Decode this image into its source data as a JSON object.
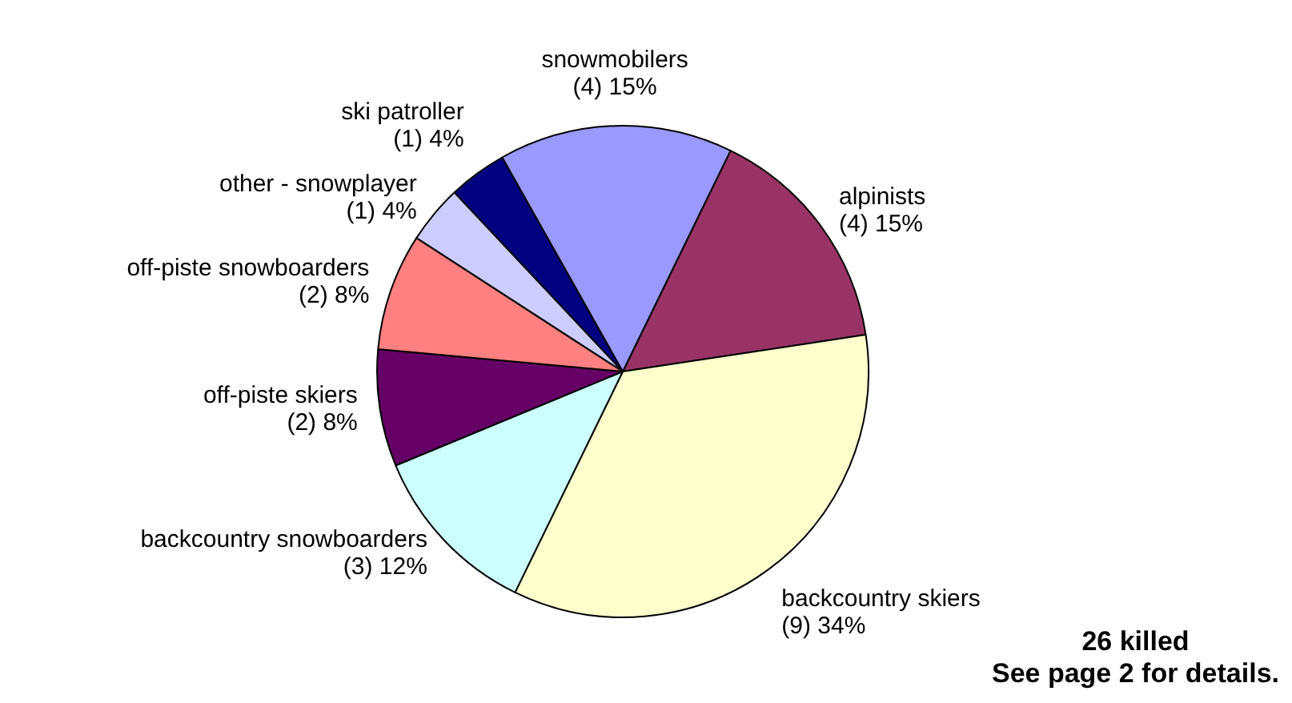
{
  "chart_data": {
    "type": "pie",
    "categories": [
      "alpinists",
      "backcountry skiers",
      "backcountry snowboarders",
      "off-piste skiers",
      "off-piste snowboarders",
      "other - snowplayer",
      "ski patroller",
      "snowmobilers"
    ],
    "values": [
      4,
      9,
      3,
      2,
      2,
      1,
      1,
      4
    ],
    "value_labels": [
      "(4) 15%",
      "(9) 34%",
      "(3) 12%",
      "(2) 8%",
      "(2) 8%",
      "(1) 4%",
      "(1) 4%",
      "(4) 15%"
    ],
    "colors": [
      "#993366",
      "#ffffcc",
      "#ccffff",
      "#660066",
      "#ff8080",
      "#ccccff",
      "#000080",
      "#9999ff"
    ],
    "legend": false,
    "annotations": [
      "26 killed",
      "See page 2 for details."
    ]
  }
}
